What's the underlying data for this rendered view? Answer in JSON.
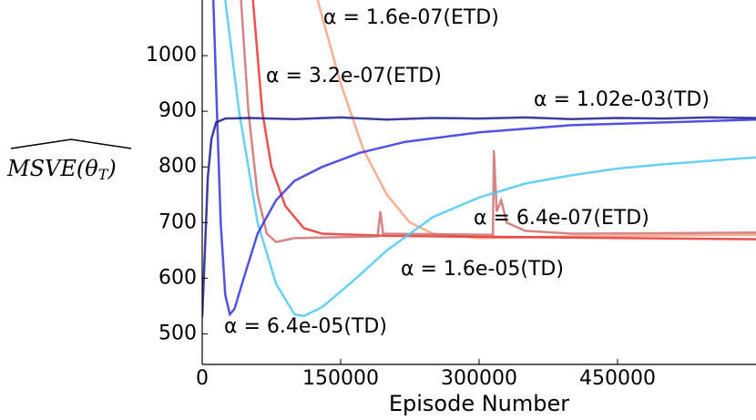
{
  "chart_data": {
    "type": "line",
    "xlabel": "Episode Number",
    "ylabel": {
      "main": "MSVE(θ",
      "sub": "T",
      "end": ")"
    },
    "xlim": [
      0,
      600000
    ],
    "ylim": [
      445,
      1100
    ],
    "xticks": [
      0,
      150000,
      300000,
      450000
    ],
    "yticks": [
      500,
      600,
      700,
      800,
      900,
      1000
    ],
    "series": [
      {
        "name": "α = 1.6e-07(ETD)",
        "color": "#f7a07c",
        "x": [
          125000,
          150000,
          175000,
          200000,
          225000,
          250000,
          300000,
          400000,
          600000
        ],
        "values": [
          1100,
          950,
          830,
          750,
          700,
          680,
          672,
          675,
          678
        ]
      },
      {
        "name": "α = 3.2e-07(ETD)",
        "color": "#e8322f",
        "x": [
          55000,
          65000,
          75000,
          90000,
          110000,
          130000,
          200000,
          400000,
          600000
        ],
        "values": [
          1100,
          900,
          800,
          730,
          690,
          680,
          676,
          673,
          670
        ]
      },
      {
        "name": "α = 6.4e-07(ETD)",
        "color": "#cc7070",
        "x": [
          42000,
          50000,
          60000,
          70000,
          80000,
          100000,
          190000,
          193000,
          196000,
          315000,
          316000,
          319000,
          324000,
          330000,
          350000,
          400000,
          600000
        ],
        "values": [
          1100,
          900,
          750,
          680,
          665,
          672,
          675,
          720,
          680,
          678,
          830,
          720,
          740,
          700,
          685,
          680,
          682
        ]
      },
      {
        "name": "α = 1.6e-05(TD)",
        "color": "#4dc8f2",
        "x": [
          25000,
          40000,
          60000,
          80000,
          100000,
          110000,
          130000,
          160000,
          200000,
          250000,
          300000,
          350000,
          400000,
          450000,
          500000,
          600000
        ],
        "values": [
          1100,
          900,
          700,
          590,
          535,
          532,
          548,
          590,
          650,
          710,
          745,
          770,
          785,
          797,
          805,
          817
        ]
      },
      {
        "name": "α = 6.4e-05(TD)",
        "color": "#3434dc",
        "x": [
          12000,
          16000,
          20000,
          25000,
          30000,
          35000,
          45000,
          60000,
          80000,
          100000,
          130000,
          170000,
          220000,
          300000,
          400000,
          500000,
          600000
        ],
        "values": [
          1100,
          900,
          700,
          570,
          535,
          545,
          600,
          680,
          740,
          775,
          800,
          825,
          845,
          862,
          875,
          880,
          885
        ]
      },
      {
        "name": "α = 1.02e-03(TD)",
        "color": "#1c1c8e",
        "x": [
          0,
          3000,
          6000,
          10000,
          15000,
          25000,
          50000,
          100000,
          150000,
          200000,
          250000,
          300000,
          350000,
          400000,
          450000,
          500000,
          550000,
          600000
        ],
        "values": [
          530,
          650,
          780,
          850,
          880,
          887,
          888,
          886,
          889,
          885,
          888,
          887,
          889,
          886,
          888,
          887,
          889,
          888
        ]
      }
    ]
  }
}
